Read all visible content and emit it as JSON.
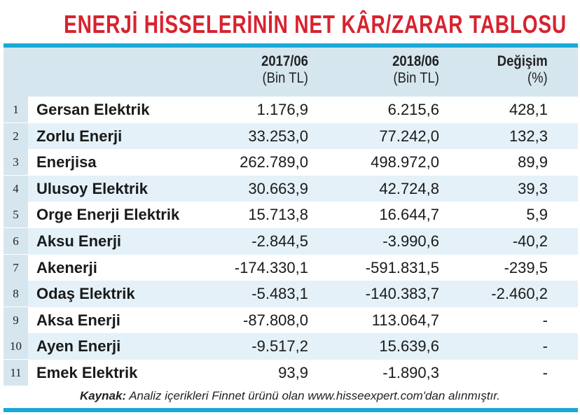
{
  "title": "ENERJİ HİSSELERİNİN NET KÂR/ZARAR TABLOSU",
  "header": {
    "col1": {
      "period": "2017/06",
      "unit": "(Bin TL)"
    },
    "col2": {
      "period": "2018/06",
      "unit": "(Bin TL)"
    },
    "col3": {
      "period": "Değişim",
      "unit": "(%)"
    }
  },
  "table": {
    "rows": [
      [
        "1",
        "Gersan Elektrik",
        "1.176,9",
        "6.215,6",
        "428,1"
      ],
      [
        "2",
        "Zorlu Enerji",
        "33.253,0",
        "77.242,0",
        "132,3"
      ],
      [
        "3",
        "Enerjisa",
        "262.789,0",
        "498.972,0",
        "89,9"
      ],
      [
        "4",
        "Ulusoy Elektrik",
        "30.663,9",
        "42.724,8",
        "39,3"
      ],
      [
        "5",
        "Orge Enerji Elektrik",
        "15.713,8",
        "16.644,7",
        "5,9"
      ],
      [
        "6",
        "Aksu Enerji",
        "-2.844,5",
        "-3.990,6",
        "-40,2"
      ],
      [
        "7",
        "Akenerji",
        "-174.330,1",
        "-591.831,5",
        "-239,5"
      ],
      [
        "8",
        "Odaş Elektrik",
        "-5.483,1",
        "-140.383,7",
        "-2.460,2"
      ],
      [
        "9",
        "Aksa Enerji",
        "-87.808,0",
        "113.064,7",
        "-"
      ],
      [
        "10",
        "Ayen Enerji",
        "-9.517,2",
        "15.639,6",
        "-"
      ],
      [
        "11",
        "Emek Elektrik",
        "93,9",
        "-1.890,3",
        "-"
      ]
    ]
  },
  "source": {
    "label": "Kaynak:",
    "text": "Analiz içerikleri Finnet ürünü olan www.hisseexpert.com'dan alınmıştır."
  }
}
